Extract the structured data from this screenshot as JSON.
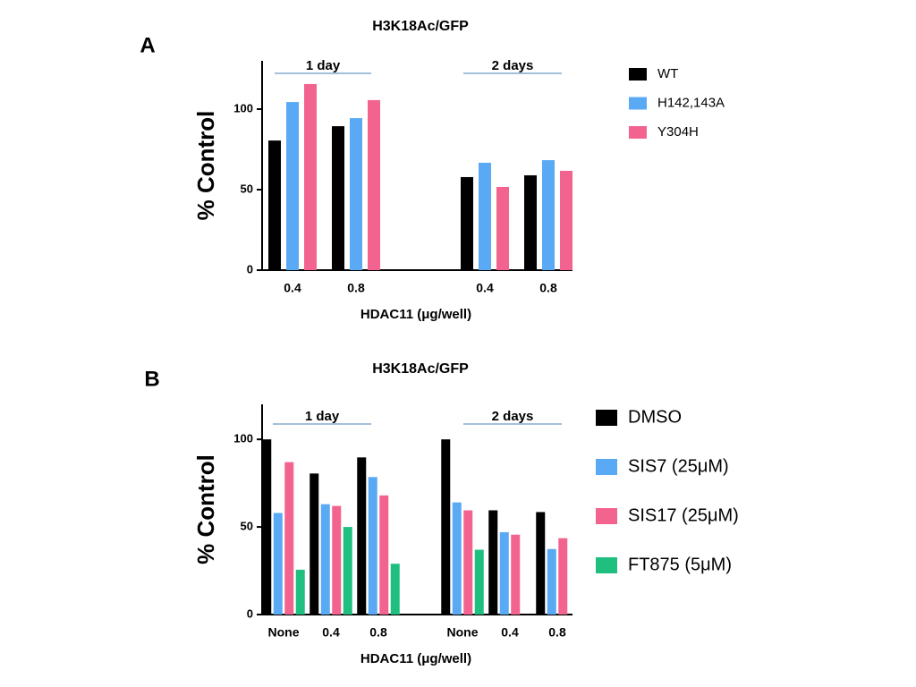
{
  "chart_data": [
    {
      "type": "bar",
      "panel": "A",
      "title": "H3K18Ac/GFP",
      "x_label": "HDAC11 (μg/well)",
      "y_label": "% Control",
      "annotations": [
        "1 day",
        "2 days"
      ],
      "categories": [
        "0.4",
        "0.8",
        "0.4",
        "0.8"
      ],
      "series": [
        {
          "name": "WT",
          "color": "#000000",
          "values": [
            80.5,
            89.4,
            57.8,
            58.9
          ]
        },
        {
          "name": "H142,143A",
          "color": "#59a9f5",
          "values": [
            104.4,
            94.4,
            66.7,
            68.3
          ]
        },
        {
          "name": "Y304H",
          "color": "#f2648f",
          "values": [
            115.6,
            105.6,
            51.7,
            61.7
          ]
        }
      ],
      "ylim": [
        0,
        130
      ],
      "yticks": [
        0,
        50,
        100
      ]
    },
    {
      "type": "bar",
      "panel": "B",
      "title": "H3K18Ac/GFP",
      "x_label": "HDAC11 (μg/well)",
      "y_label": "% Control",
      "annotations": [
        "1 day",
        "2 days"
      ],
      "categories": [
        "None",
        "0.4",
        "0.8",
        "None",
        "0.4",
        "0.8"
      ],
      "series": [
        {
          "name": "DMSO",
          "color": "#000000",
          "values": [
            100,
            80.5,
            89.7,
            100,
            59.5,
            58.5
          ]
        },
        {
          "name": "SIS7 (25μM)",
          "color": "#59a9f5",
          "values": [
            58,
            63,
            78.5,
            64,
            47,
            37.4
          ]
        },
        {
          "name": "SIS17 (25μM)",
          "color": "#f2648f",
          "values": [
            87,
            62,
            68,
            59.5,
            45.6,
            43.6
          ]
        },
        {
          "name": "FT875 (5μM)",
          "color": "#1fbf80",
          "values": [
            25.6,
            50,
            29,
            37,
            null,
            null
          ]
        }
      ],
      "ylim": [
        0,
        120
      ],
      "yticks": [
        0,
        50,
        100
      ]
    }
  ]
}
